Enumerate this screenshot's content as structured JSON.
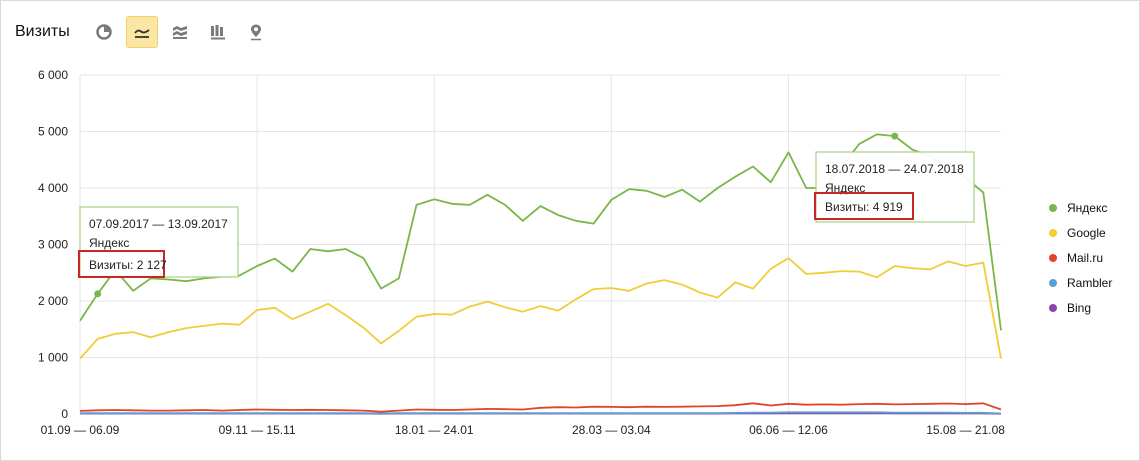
{
  "header": {
    "title": "Визиты",
    "buttons": [
      {
        "icon": "pie-chart-icon",
        "active": false
      },
      {
        "icon": "line-chart-icon",
        "active": true
      },
      {
        "icon": "area-chart-icon",
        "active": false
      },
      {
        "icon": "bar-chart-icon",
        "active": false
      },
      {
        "icon": "map-pin-icon",
        "active": false
      }
    ]
  },
  "colors": {
    "yandex": "#7ab648",
    "google": "#f0cd3a",
    "mailru": "#e2432a",
    "rambler": "#5a9fd4",
    "bing": "#8e44ad",
    "tooltip_border": "#a8cf87",
    "highlight_border": "#c62828",
    "active_button": "#fbe6a4"
  },
  "legend": [
    {
      "name": "Яндекс",
      "color": "#7ab648"
    },
    {
      "name": "Google",
      "color": "#f0cd3a"
    },
    {
      "name": "Mail.ru",
      "color": "#e2432a"
    },
    {
      "name": "Rambler",
      "color": "#5a9fd4"
    },
    {
      "name": "Bing",
      "color": "#8e44ad"
    }
  ],
  "tooltips": [
    {
      "period": "07.09.2017 — 13.09.2017",
      "series": "Яндекс",
      "value": "Визиты: 2 127",
      "point_index": 1,
      "point_value": 2127
    },
    {
      "period": "18.07.2018 — 24.07.2018",
      "series": "Яндекс",
      "value": "Визиты: 4 919",
      "point_index": 46,
      "point_value": 4919
    }
  ],
  "chart_data": {
    "type": "line",
    "title": "Визиты",
    "xlabel": "",
    "ylabel": "",
    "ylim": [
      0,
      6000
    ],
    "yticks": [
      0,
      1000,
      2000,
      3000,
      4000,
      5000,
      6000
    ],
    "ytick_labels": [
      "0",
      "1 000",
      "2 000",
      "3 000",
      "4 000",
      "5 000",
      "6 000"
    ],
    "xtick_labels": [
      {
        "index": 0,
        "label": "01.09 — 06.09"
      },
      {
        "index": 10,
        "label": "09.11 — 15.11"
      },
      {
        "index": 20,
        "label": "18.01 — 24.01"
      },
      {
        "index": 30,
        "label": "28.03 — 03.04"
      },
      {
        "index": 40,
        "label": "06.06 — 12.06"
      },
      {
        "index": 50,
        "label": "15.08 — 21.08"
      }
    ],
    "grid": true,
    "legend_position": "right",
    "series": [
      {
        "name": "Яндекс",
        "color": "#7ab648",
        "values": [
          1650,
          2127,
          2550,
          2180,
          2400,
          2380,
          2350,
          2400,
          2430,
          2450,
          2620,
          2750,
          2520,
          2920,
          2880,
          2920,
          2760,
          2220,
          2400,
          3700,
          3800,
          3720,
          3700,
          3880,
          3700,
          3420,
          3680,
          3520,
          3420,
          3370,
          3790,
          3980,
          3950,
          3840,
          3970,
          3760,
          4000,
          4200,
          4380,
          4100,
          4630,
          4000,
          4000,
          4380,
          4780,
          4950,
          4919,
          4680,
          4560,
          4360,
          4180,
          3920,
          1480
        ]
      },
      {
        "name": "Google",
        "color": "#f0cd3a",
        "values": [
          980,
          1330,
          1420,
          1450,
          1360,
          1450,
          1520,
          1560,
          1600,
          1580,
          1840,
          1880,
          1680,
          1810,
          1950,
          1750,
          1530,
          1250,
          1470,
          1720,
          1770,
          1760,
          1900,
          1990,
          1890,
          1810,
          1910,
          1830,
          2030,
          2210,
          2230,
          2180,
          2310,
          2370,
          2290,
          2150,
          2060,
          2330,
          2220,
          2570,
          2760,
          2480,
          2500,
          2530,
          2520,
          2420,
          2620,
          2580,
          2560,
          2700,
          2620,
          2680,
          980
        ]
      },
      {
        "name": "Mail.ru",
        "color": "#e2432a",
        "values": [
          55,
          65,
          70,
          65,
          60,
          60,
          65,
          70,
          60,
          70,
          80,
          75,
          70,
          75,
          70,
          65,
          60,
          40,
          60,
          80,
          75,
          70,
          80,
          90,
          85,
          80,
          110,
          120,
          115,
          130,
          125,
          120,
          130,
          125,
          130,
          135,
          140,
          155,
          190,
          150,
          180,
          165,
          170,
          165,
          175,
          180,
          170,
          175,
          180,
          185,
          175,
          190,
          80
        ]
      },
      {
        "name": "Rambler",
        "color": "#5a9fd4",
        "values": [
          15,
          15,
          15,
          15,
          15,
          15,
          15,
          15,
          15,
          15,
          15,
          15,
          15,
          15,
          15,
          15,
          15,
          10,
          15,
          15,
          15,
          15,
          15,
          15,
          15,
          15,
          15,
          15,
          15,
          15,
          15,
          15,
          15,
          15,
          15,
          15,
          15,
          20,
          25,
          25,
          30,
          30,
          30,
          30,
          30,
          30,
          25,
          25,
          25,
          25,
          20,
          20,
          10
        ]
      },
      {
        "name": "Bing",
        "color": "#8e44ad",
        "values": [
          8,
          8,
          8,
          8,
          8,
          8,
          8,
          8,
          8,
          8,
          8,
          8,
          8,
          8,
          8,
          8,
          8,
          5,
          8,
          8,
          8,
          8,
          8,
          8,
          8,
          8,
          8,
          8,
          8,
          8,
          8,
          8,
          8,
          8,
          8,
          8,
          8,
          10,
          12,
          12,
          14,
          14,
          14,
          14,
          14,
          14,
          12,
          12,
          12,
          12,
          10,
          10,
          5
        ]
      }
    ]
  }
}
